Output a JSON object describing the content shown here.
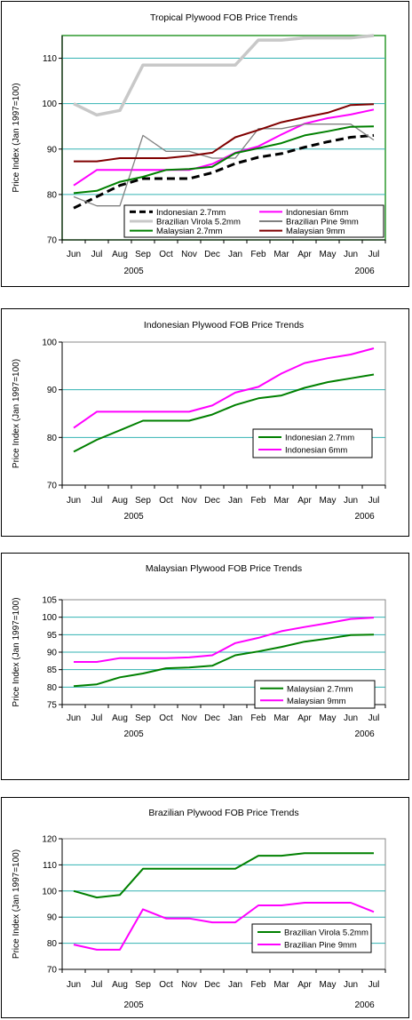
{
  "chart_data": [
    {
      "type": "line",
      "title": "Tropical Plywood FOB Price Trends",
      "ylabel": "Price Index (Jan 1997=100)",
      "ylim": [
        70,
        115
      ],
      "yticks": [
        70,
        80,
        90,
        100,
        110
      ],
      "categories": [
        "Jun",
        "Jul",
        "Aug",
        "Sep",
        "Oct",
        "Nov",
        "Dec",
        "Jan",
        "Feb",
        "Mar",
        "Apr",
        "May",
        "Jun",
        "Jul"
      ],
      "years": [
        "2005",
        "2006"
      ],
      "grid": true,
      "legend": "bottom-right",
      "series": [
        {
          "name": "Indonesian 2.7mm",
          "color": "#000000",
          "dash": true,
          "values": [
            77,
            79.5,
            82,
            83.5,
            83.5,
            83.5,
            84.8,
            86.8,
            88.2,
            89,
            90.4,
            91.6,
            92.6,
            93
          ]
        },
        {
          "name": "Indonesian 6mm",
          "color": "#ff00ff",
          "values": [
            82,
            85.4,
            85.4,
            85.4,
            85.4,
            85.4,
            86.7,
            89.2,
            90.6,
            93.2,
            95.6,
            96.8,
            97.6,
            98.7
          ]
        },
        {
          "name": "Brazilian Virola 5.2mm",
          "color": "#c8c8c8",
          "wide": true,
          "values": [
            100,
            97.5,
            98.5,
            108.5,
            108.5,
            108.5,
            108.5,
            108.5,
            114,
            114,
            114.5,
            114.5,
            114.5,
            115
          ]
        },
        {
          "name": "Brazilian Pine 9mm",
          "color": "#808080",
          "values": [
            79.5,
            77.5,
            77.5,
            93,
            89.5,
            89.5,
            88,
            88,
            94.5,
            94.5,
            95.5,
            95.5,
            95.5,
            92
          ]
        },
        {
          "name": "Malaysian 2.7mm",
          "color": "#008000",
          "values": [
            80.3,
            80.8,
            82.8,
            83.9,
            85.4,
            85.6,
            86.1,
            89.1,
            90.2,
            91.3,
            93,
            93.9,
            94.9,
            95
          ]
        },
        {
          "name": "Malaysian 9mm",
          "color": "#800000",
          "values": [
            87.3,
            87.3,
            88,
            88,
            88,
            88.5,
            89.2,
            92.6,
            94.2,
            95.9,
            97,
            98,
            99.7,
            99.9
          ]
        }
      ]
    },
    {
      "type": "line",
      "title": "Indonesian Plywood FOB Price Trends",
      "ylabel": "Price Index (Jan 1997=100)",
      "ylim": [
        70,
        100
      ],
      "yticks": [
        70,
        80,
        90,
        100
      ],
      "categories": [
        "Jun",
        "Jul",
        "Aug",
        "Sep",
        "Oct",
        "Nov",
        "Dec",
        "Jan",
        "Feb",
        "Mar",
        "Apr",
        "May",
        "Jun",
        "Jul"
      ],
      "years": [
        "2005",
        "2006"
      ],
      "grid": true,
      "legend": "center-right",
      "series": [
        {
          "name": "Indonesian 2.7mm",
          "color": "#008000",
          "values": [
            77,
            79.5,
            81.5,
            83.5,
            83.5,
            83.5,
            84.8,
            86.8,
            88.2,
            88.8,
            90.4,
            91.6,
            92.4,
            93.2
          ]
        },
        {
          "name": "Indonesian 6mm",
          "color": "#ff00ff",
          "values": [
            82,
            85.4,
            85.4,
            85.4,
            85.4,
            85.4,
            86.7,
            89.4,
            90.6,
            93.4,
            95.6,
            96.6,
            97.4,
            98.7
          ]
        }
      ]
    },
    {
      "type": "line",
      "title": "Malaysian Plywood FOB Price Trends",
      "ylabel": "Price Index (Jan 1997=100)",
      "ylim": [
        75,
        105
      ],
      "yticks": [
        75,
        80,
        85,
        90,
        95,
        100,
        105
      ],
      "categories": [
        "Jun",
        "Jul",
        "Aug",
        "Sep",
        "Oct",
        "Nov",
        "Dec",
        "Jan",
        "Feb",
        "Mar",
        "Apr",
        "May",
        "Jun",
        "Jul"
      ],
      "years": [
        "2005",
        "2006"
      ],
      "grid": true,
      "legend": "center-right",
      "series": [
        {
          "name": "Malaysian 2.7mm",
          "color": "#008000",
          "values": [
            80.3,
            80.8,
            82.8,
            83.9,
            85.4,
            85.6,
            86.1,
            89.1,
            90.2,
            91.5,
            93,
            93.9,
            94.9,
            95
          ]
        },
        {
          "name": "Malaysian 9mm",
          "color": "#ff00ff",
          "values": [
            87.2,
            87.2,
            88.3,
            88.3,
            88.3,
            88.5,
            89.1,
            92.6,
            94.1,
            96,
            97.2,
            98.3,
            99.5,
            99.9
          ]
        }
      ]
    },
    {
      "type": "line",
      "title": "Brazilian Plywood FOB Price Trends",
      "ylabel": "Price Index (Jan 1997=100)",
      "ylim": [
        70,
        120
      ],
      "yticks": [
        70,
        80,
        90,
        100,
        110,
        120
      ],
      "categories": [
        "Jun",
        "Jul",
        "Aug",
        "Sep",
        "Oct",
        "Nov",
        "Dec",
        "Jan",
        "Feb",
        "Mar",
        "Apr",
        "May",
        "Jun",
        "Jul"
      ],
      "years": [
        "2005",
        "2006"
      ],
      "grid": true,
      "legend": "bottom-right",
      "series": [
        {
          "name": "Brazilian Virola 5.2mm",
          "color": "#008000",
          "values": [
            100,
            97.5,
            98.5,
            108.5,
            108.5,
            108.5,
            108.5,
            108.5,
            113.5,
            113.5,
            114.5,
            114.5,
            114.5,
            114.5
          ]
        },
        {
          "name": "Brazilian Pine 9mm",
          "color": "#ff00ff",
          "values": [
            79.5,
            77.5,
            77.5,
            93,
            89.5,
            89.5,
            88,
            88,
            94.5,
            94.5,
            95.5,
            95.5,
            95.5,
            92
          ]
        }
      ]
    }
  ]
}
